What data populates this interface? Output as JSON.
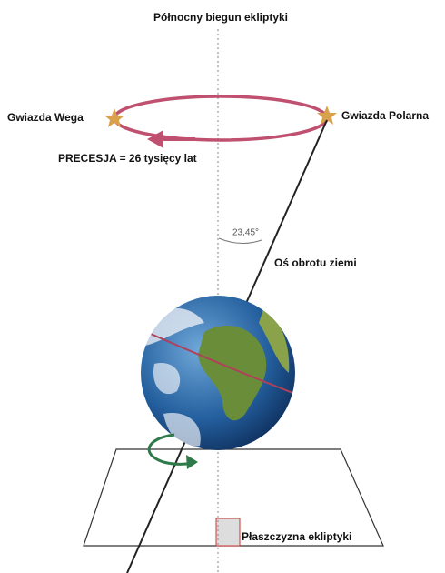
{
  "title": "Północny biegun ekliptyki",
  "labels": {
    "vega": "Gwiazda Wega",
    "polaris": "Gwiazda Polarna",
    "precession": "PRECESJA = 26 tysięcy lat",
    "angle": "23,45°",
    "axis": "Oś obrotu ziemi",
    "plane": "Płaszczyzna ekliptyki"
  }
}
